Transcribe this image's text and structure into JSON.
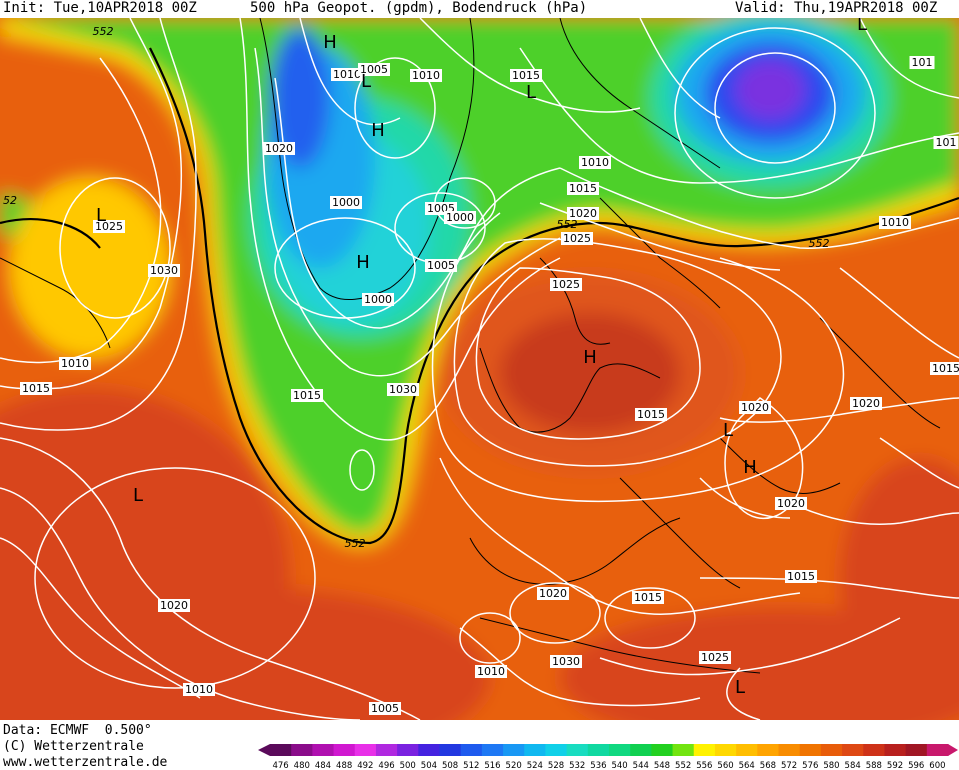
{
  "header": {
    "init": "Init: Tue,10APR2018 00Z",
    "title": "500 hPa Geopot. (gpdm), Bodendruck (hPa)",
    "valid": "Valid: Thu,19APR2018 00Z"
  },
  "footer": {
    "data": "Data: ECMWF  0.500°",
    "copyright": "(C) Wetterzentrale",
    "url": "www.wetterzentrale.de"
  },
  "colors": {
    "contour_lines": "#ffffff",
    "geopot_552_line": "#000000",
    "coastline": "#000000"
  },
  "scale": {
    "labels": [
      "476",
      "480",
      "484",
      "488",
      "492",
      "496",
      "500",
      "504",
      "508",
      "512",
      "516",
      "520",
      "524",
      "528",
      "532",
      "536",
      "540",
      "544",
      "548",
      "552",
      "556",
      "560",
      "564",
      "568",
      "572",
      "576",
      "580",
      "584",
      "588",
      "592",
      "596",
      "600"
    ],
    "colors": [
      "#5a0a5a",
      "#8a0c8a",
      "#b010b0",
      "#d018d0",
      "#e830e8",
      "#b028e0",
      "#7a22e0",
      "#4422e0",
      "#2238e0",
      "#1e5aee",
      "#1e78f4",
      "#1898f4",
      "#10b8f0",
      "#10d0e8",
      "#18dcc0",
      "#10d8a0",
      "#10d880",
      "#10d050",
      "#22d020",
      "#72e410",
      "#fff200",
      "#ffd800",
      "#ffbe00",
      "#ffa400",
      "#f88c00",
      "#f07400",
      "#e85c0a",
      "#de4814",
      "#ce3218",
      "#b8201e",
      "#a01624",
      "#c8186c"
    ]
  },
  "pressure_labels": [
    {
      "text": "1010"
    },
    {
      "text": "1005"
    },
    {
      "text": "1010"
    },
    {
      "text": "1015"
    },
    {
      "text": "1020"
    },
    {
      "text": "1010"
    },
    {
      "text": "1015"
    },
    {
      "text": "1020"
    },
    {
      "text": "1025"
    },
    {
      "text": "1000"
    },
    {
      "text": "1005"
    },
    {
      "text": "1000"
    },
    {
      "text": "1005"
    },
    {
      "text": "1000"
    },
    {
      "text": "1030"
    },
    {
      "text": "1010"
    },
    {
      "text": "1015"
    },
    {
      "text": "1015"
    },
    {
      "text": "1030"
    },
    {
      "text": "1025"
    },
    {
      "text": "1025"
    },
    {
      "text": "1015"
    },
    {
      "text": "1020"
    },
    {
      "text": "1020"
    },
    {
      "text": "1020"
    },
    {
      "text": "1015"
    },
    {
      "text": "1015"
    },
    {
      "text": "1010"
    },
    {
      "text": "1030"
    },
    {
      "text": "1025"
    },
    {
      "text": "1020"
    },
    {
      "text": "1010"
    },
    {
      "text": "1005"
    },
    {
      "text": "101"
    },
    {
      "text": "101"
    },
    {
      "text": "1015"
    },
    {
      "text": "1020"
    },
    {
      "text": "1010"
    }
  ],
  "geopot_labels": [
    {
      "text": "552"
    },
    {
      "text": "52"
    },
    {
      "text": "552"
    },
    {
      "text": "552"
    },
    {
      "text": "552"
    }
  ],
  "centers": [
    {
      "text": "H"
    },
    {
      "text": "L"
    },
    {
      "text": "H"
    },
    {
      "text": "L"
    },
    {
      "text": "L"
    },
    {
      "text": "H"
    },
    {
      "text": "H"
    },
    {
      "text": "L"
    },
    {
      "text": "H"
    },
    {
      "text": "L"
    },
    {
      "text": "L"
    },
    {
      "text": "L"
    }
  ]
}
